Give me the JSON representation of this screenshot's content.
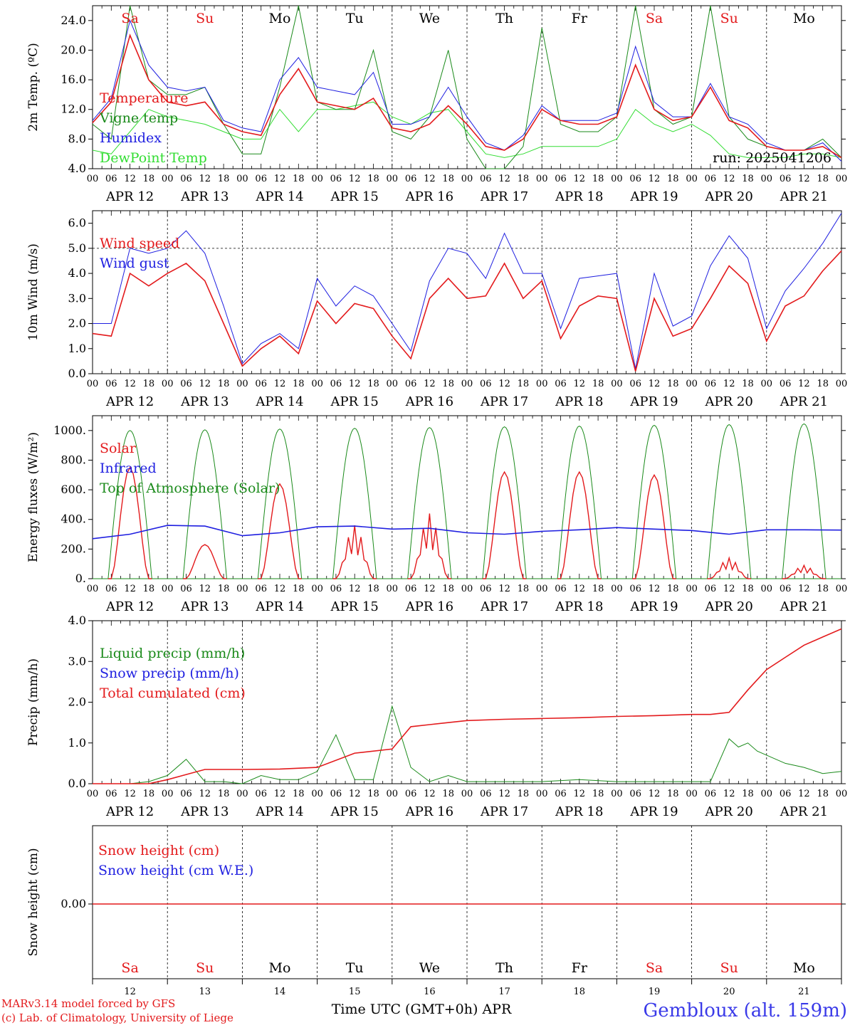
{
  "colors": {
    "red": "#e31a1c",
    "dark_green": "#1a8a1a",
    "blue": "#1f1fe0",
    "light_green": "#33dd33",
    "title_blue": "#3a3ae8"
  },
  "x_axis": {
    "hour_labels": [
      "00",
      "06",
      "12",
      "18"
    ],
    "final_label": "00",
    "date_labels": [
      "APR 12",
      "APR 13",
      "APR 14",
      "APR 15",
      "APR 16",
      "APR 17",
      "APR 18",
      "APR 19",
      "APR 20",
      "APR 21"
    ],
    "weekdays": [
      "Sa",
      "Su",
      "Mo",
      "Tu",
      "We",
      "Th",
      "Fr",
      "Sa",
      "Su",
      "Mo"
    ],
    "weekend_index": [
      0,
      1,
      7,
      8
    ],
    "bottom_day_numbers": [
      "12",
      "13",
      "14",
      "15",
      "16",
      "17",
      "18",
      "19",
      "20",
      "21"
    ],
    "title": "Time UTC (GMT+0h) APR"
  },
  "footer": {
    "credit_1": "MARv3.14 model forced by GFS",
    "credit_2": "(c) Lab. of Climatology, University of Liege",
    "location": "Gembloux (alt. 159m)"
  },
  "chart_data": [
    {
      "type": "line",
      "ylabel": "2m Temp. (ºC)",
      "ylim": [
        4.0,
        26.0
      ],
      "yticks": [
        "4.0",
        "8.0",
        "12.0",
        "16.0",
        "20.0",
        "24.0"
      ],
      "yticks_values": [
        4,
        8,
        12,
        16,
        20,
        24
      ],
      "annotation": "run: 2025041206",
      "grid": "vertical day separators",
      "x": [
        0,
        6,
        12,
        18,
        24,
        30,
        36,
        42,
        48,
        54,
        60,
        66,
        72,
        78,
        84,
        90,
        96,
        102,
        108,
        114,
        120,
        126,
        132,
        138,
        144,
        150,
        156,
        162,
        168,
        174,
        180,
        186,
        192,
        198,
        204,
        210,
        216,
        222,
        228,
        234,
        240
      ],
      "series": [
        {
          "name": "Temperature",
          "color_key": "red",
          "values": [
            10.2,
            13,
            22,
            16,
            13,
            12.5,
            13,
            10,
            9,
            8.5,
            14,
            17.5,
            13,
            12.5,
            12,
            13.5,
            9.5,
            9,
            10,
            12.5,
            10,
            7,
            6.5,
            8,
            12,
            10.5,
            10,
            10,
            11,
            18,
            12,
            10.5,
            11,
            15,
            10.5,
            9.5,
            7,
            6.5,
            6.5,
            7,
            5.5
          ]
        },
        {
          "name": "Vigne temp",
          "color_key": "dark_green",
          "values": [
            10,
            8,
            27,
            16,
            14,
            14,
            15,
            10,
            6,
            6,
            15,
            27,
            13,
            12,
            12,
            20,
            9,
            8,
            11,
            20,
            8,
            4,
            4,
            7,
            23,
            10,
            9,
            9,
            11,
            26,
            12,
            10,
            11,
            26,
            11,
            8,
            7,
            6.5,
            6.5,
            8,
            5.5
          ]
        },
        {
          "name": "Humidex",
          "color_key": "blue",
          "values": [
            10.5,
            13.5,
            24,
            18,
            15,
            14.5,
            15,
            10.5,
            9.5,
            9,
            16,
            19,
            15,
            14.5,
            14,
            17,
            10,
            10,
            11,
            15,
            11,
            7.5,
            6.5,
            8.5,
            12.5,
            10.5,
            10.5,
            10.5,
            11.5,
            20.5,
            13,
            11,
            11,
            15.5,
            11,
            10,
            7.5,
            6.5,
            6.5,
            7.5,
            5
          ]
        },
        {
          "name": "DewPoint Temp",
          "color_key": "light_green",
          "values": [
            6.5,
            6,
            9,
            12,
            11,
            10.5,
            10,
            9,
            8,
            8,
            12,
            9,
            12,
            12,
            12.5,
            13,
            11,
            10,
            11.5,
            12,
            9,
            6,
            5.5,
            6,
            7,
            7,
            7,
            7,
            8,
            12,
            10,
            9,
            10,
            8.5,
            6,
            5.5,
            5.5,
            5.5,
            6,
            6,
            5.5
          ]
        }
      ]
    },
    {
      "type": "line",
      "ylabel": "10m Wind (m/s)",
      "ylim": [
        0.0,
        6.5
      ],
      "yticks": [
        "0.0",
        "1.0",
        "2.0",
        "3.0",
        "4.0",
        "5.0",
        "6.0"
      ],
      "yticks_values": [
        0,
        1,
        2,
        3,
        4,
        5,
        6
      ],
      "reference_line": 5.0,
      "x": [
        0,
        6,
        12,
        18,
        24,
        30,
        36,
        42,
        48,
        54,
        60,
        66,
        72,
        78,
        84,
        90,
        96,
        102,
        108,
        114,
        120,
        126,
        132,
        138,
        144,
        150,
        156,
        162,
        168,
        174,
        180,
        186,
        192,
        198,
        204,
        210,
        216,
        222,
        228,
        234,
        240
      ],
      "series": [
        {
          "name": "Wind speed",
          "color_key": "red",
          "values": [
            1.6,
            1.5,
            4.0,
            3.5,
            4.0,
            4.4,
            3.7,
            2.0,
            0.3,
            1.0,
            1.5,
            0.8,
            2.9,
            2.0,
            2.8,
            2.6,
            1.5,
            0.6,
            3.0,
            3.8,
            3.0,
            3.1,
            4.4,
            3.0,
            3.7,
            1.4,
            2.7,
            3.1,
            3.0,
            0.1,
            3.0,
            1.5,
            1.8,
            3.0,
            4.3,
            3.6,
            1.3,
            2.7,
            3.1,
            4.1,
            4.9
          ]
        },
        {
          "name": "Wind gust",
          "color_key": "blue",
          "values": [
            2.0,
            2.0,
            5.0,
            4.8,
            5.0,
            5.7,
            4.8,
            2.7,
            0.4,
            1.2,
            1.6,
            1.0,
            3.8,
            2.7,
            3.5,
            3.1,
            2.0,
            0.9,
            3.7,
            5.0,
            4.8,
            3.8,
            5.6,
            4.0,
            4.0,
            1.8,
            3.8,
            3.9,
            4.0,
            0.2,
            4.0,
            1.9,
            2.3,
            4.3,
            5.5,
            4.6,
            1.8,
            3.3,
            4.2,
            5.2,
            6.4
          ]
        }
      ]
    },
    {
      "type": "line",
      "ylabel": "Energy fluxes (W/m²)",
      "ylim": [
        0,
        1100
      ],
      "yticks": [
        "0.",
        "200.",
        "400.",
        "600.",
        "800.",
        "1000."
      ],
      "yticks_values": [
        0,
        200,
        400,
        600,
        800,
        1000
      ],
      "x_days": [
        0,
        1,
        2,
        3,
        4,
        5,
        6,
        7,
        8,
        9
      ],
      "series": [
        {
          "name": "Solar",
          "color_key": "red",
          "daily_peak": [
            750,
            230,
            640,
            360,
            440,
            720,
            720,
            700,
            140,
            90
          ]
        },
        {
          "name": "Infrared",
          "color_key": "blue",
          "x": [
            0,
            12,
            24,
            36,
            48,
            60,
            72,
            84,
            96,
            108,
            120,
            132,
            144,
            156,
            168,
            180,
            192,
            204,
            216,
            228,
            240
          ],
          "values": [
            270,
            300,
            360,
            355,
            290,
            310,
            350,
            355,
            335,
            340,
            310,
            300,
            320,
            330,
            345,
            335,
            325,
            300,
            330,
            330,
            328
          ]
        },
        {
          "name": "Top of Atmosphere (Solar)",
          "color_key": "dark_green",
          "daily_peak": [
            1000,
            1005,
            1010,
            1015,
            1020,
            1025,
            1030,
            1035,
            1040,
            1045
          ]
        }
      ]
    },
    {
      "type": "line",
      "ylabel": "Precip (mm/h)",
      "ylim": [
        0.0,
        4.0
      ],
      "yticks": [
        "0.0",
        "1.0",
        "2.0",
        "3.0",
        "4.0"
      ],
      "yticks_values": [
        0,
        1,
        2,
        3,
        4
      ],
      "series": [
        {
          "name": "Liquid precip (mm/h)",
          "color_key": "dark_green",
          "x": [
            0,
            12,
            18,
            24,
            30,
            36,
            42,
            48,
            54,
            60,
            66,
            72,
            78,
            84,
            90,
            96,
            102,
            108,
            114,
            120,
            132,
            144,
            156,
            168,
            180,
            192,
            198,
            204,
            207,
            210,
            213,
            216,
            222,
            228,
            234,
            240
          ],
          "values": [
            0,
            0,
            0.05,
            0.2,
            0.6,
            0.05,
            0.05,
            0.0,
            0.2,
            0.1,
            0.1,
            0.3,
            1.2,
            0.1,
            0.1,
            1.9,
            0.4,
            0.05,
            0.2,
            0.05,
            0.05,
            0.05,
            0.1,
            0.05,
            0.05,
            0.05,
            0.05,
            1.1,
            0.9,
            1.0,
            0.8,
            0.7,
            0.5,
            0.4,
            0.25,
            0.3
          ]
        },
        {
          "name": "Snow precip (mm/h)",
          "color_key": "blue",
          "values": []
        },
        {
          "name": "Total cumulated (cm)",
          "color_key": "red",
          "x": [
            0,
            18,
            24,
            36,
            48,
            60,
            72,
            84,
            96,
            102,
            108,
            120,
            132,
            144,
            156,
            168,
            180,
            192,
            198,
            204,
            210,
            216,
            222,
            228,
            234,
            240
          ],
          "values": [
            0,
            0,
            0.1,
            0.35,
            0.35,
            0.36,
            0.4,
            0.75,
            0.85,
            1.4,
            1.45,
            1.55,
            1.58,
            1.6,
            1.62,
            1.65,
            1.67,
            1.7,
            1.7,
            1.75,
            2.3,
            2.8,
            3.1,
            3.4,
            3.6,
            3.8
          ]
        }
      ]
    },
    {
      "type": "line",
      "ylabel": "Snow height (cm)",
      "yticks": [
        "0.00"
      ],
      "yticks_values": [
        0
      ],
      "series": [
        {
          "name": "Snow height (cm)",
          "color_key": "red",
          "values": [
            0,
            0
          ]
        },
        {
          "name": "Snow height (cm W.E.)",
          "color_key": "blue",
          "values": []
        }
      ]
    }
  ]
}
